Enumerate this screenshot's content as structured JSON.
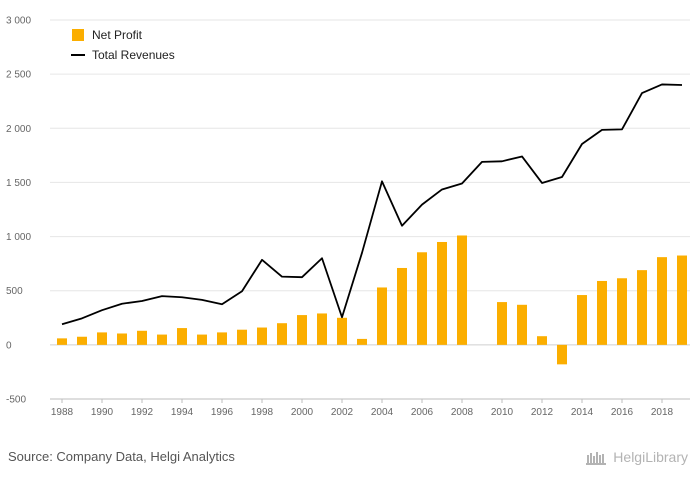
{
  "chart_data": {
    "type": "bar",
    "title": "",
    "xlabel": "",
    "ylabel": "",
    "ylim": [
      -500,
      3000
    ],
    "yticks": [
      -500,
      0,
      500,
      1000,
      1500,
      2000,
      2500,
      3000
    ],
    "ytick_labels": [
      "-500",
      "0",
      "500",
      "1 000",
      "1 500",
      "2 000",
      "2 500",
      "3 000"
    ],
    "xtick_labels": [
      "1988",
      "1990",
      "1992",
      "1994",
      "1996",
      "1998",
      "2000",
      "2002",
      "2004",
      "2006",
      "2008",
      "2010",
      "2012",
      "2014",
      "2016",
      "2018"
    ],
    "categories": [
      "1988",
      "1989",
      "1990",
      "1991",
      "1992",
      "1993",
      "1994",
      "1995",
      "1996",
      "1997",
      "1998",
      "1999",
      "2000",
      "2001",
      "2002",
      "2003",
      "2004",
      "2005",
      "2006",
      "2007",
      "2008",
      "2009",
      "2010",
      "2011",
      "2012",
      "2013",
      "2014",
      "2015",
      "2016",
      "2017",
      "2018",
      "2019"
    ],
    "grid": true,
    "legend_position": "top-left",
    "series": [
      {
        "name": "Net Profit",
        "kind": "bar",
        "color": "#FBAE00",
        "values": [
          60,
          75,
          115,
          105,
          130,
          95,
          155,
          95,
          115,
          140,
          160,
          200,
          275,
          290,
          250,
          55,
          530,
          710,
          855,
          950,
          1010,
          null,
          395,
          370,
          80,
          -180,
          460,
          590,
          615,
          690,
          810,
          825
        ]
      },
      {
        "name": "Total Revenues",
        "kind": "line",
        "color": "#000000",
        "values": [
          190,
          245,
          320,
          380,
          405,
          450,
          440,
          415,
          375,
          495,
          785,
          630,
          625,
          800,
          255,
          850,
          1510,
          1100,
          1295,
          1435,
          1490,
          1690,
          1695,
          1740,
          1495,
          1550,
          1855,
          1985,
          1990,
          2325,
          2405,
          2400
        ]
      }
    ]
  },
  "footer": {
    "source": "Source: Company Data, Helgi Analytics",
    "brand": "HelgiLibrary"
  },
  "icons": {
    "brand": "library-icon"
  }
}
